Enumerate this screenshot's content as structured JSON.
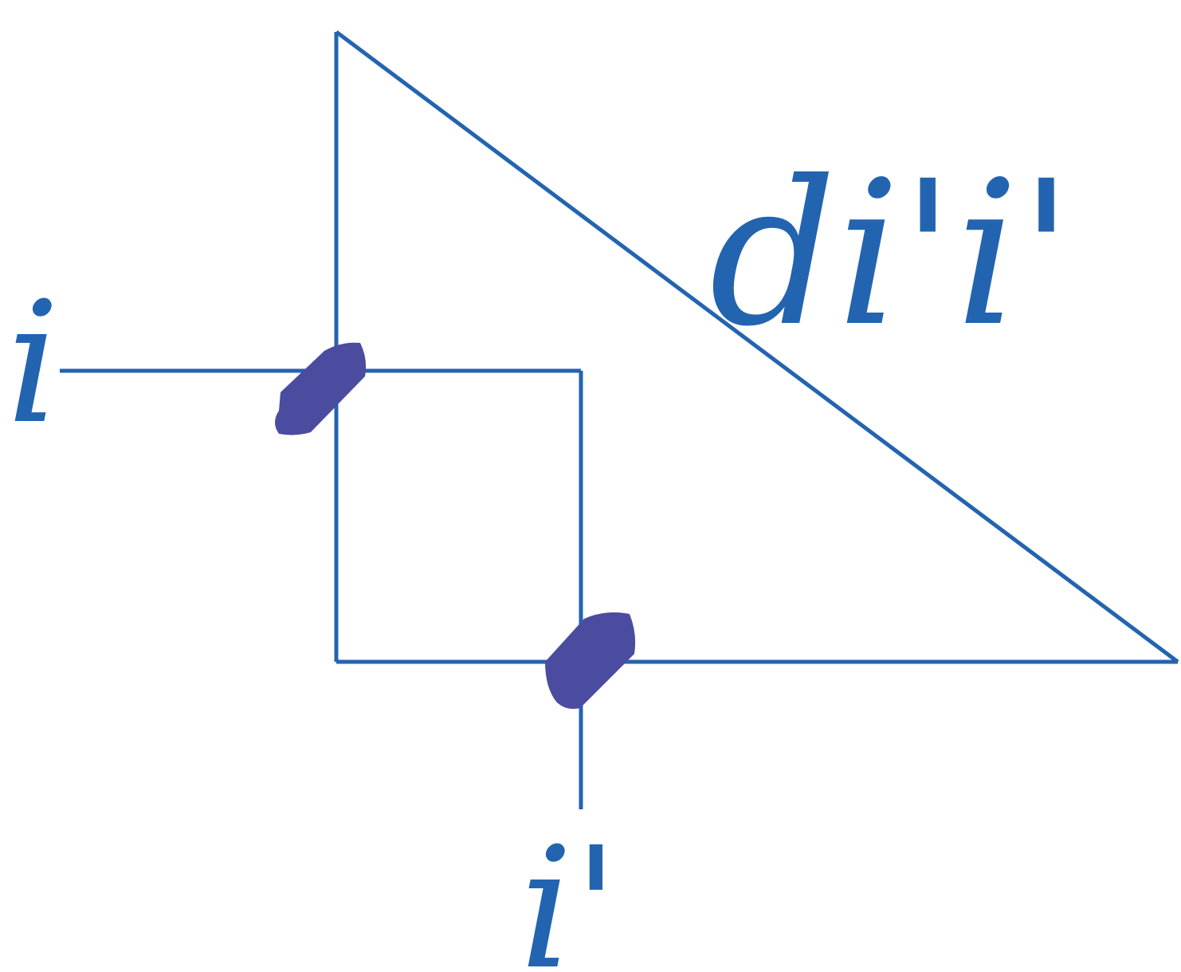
{
  "labels": {
    "incident_ray": "i",
    "angle_difference": "di'i'",
    "refracted_ray": "i'"
  },
  "colors": {
    "line": "#2364b0",
    "label": "#2364b0",
    "angle_mark": "#4b4c9f",
    "background": "#ffffff"
  }
}
